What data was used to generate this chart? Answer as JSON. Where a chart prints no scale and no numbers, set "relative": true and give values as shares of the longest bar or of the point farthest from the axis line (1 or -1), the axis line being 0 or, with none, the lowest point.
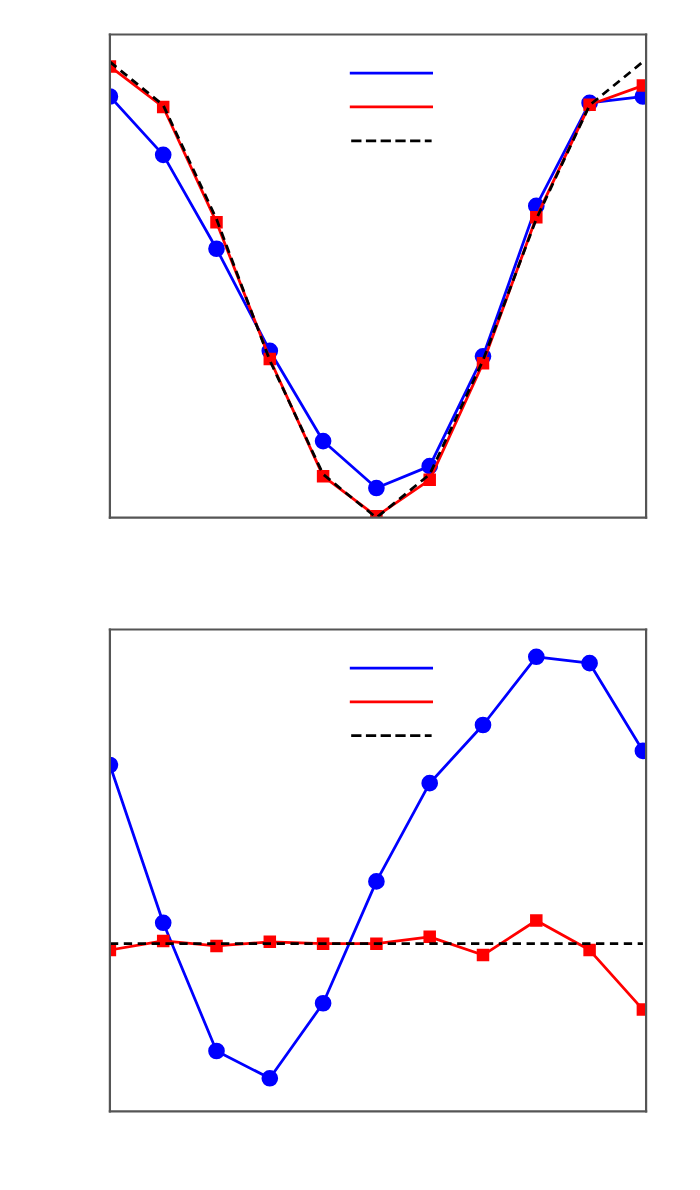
{
  "chart_data": [
    {
      "type": "line",
      "relative": true,
      "categories": [
        null,
        null,
        null,
        null,
        null,
        null,
        null,
        null,
        null,
        null,
        null
      ],
      "grid": false,
      "series": [
        {
          "color": "#0000ff",
          "marker": "circle",
          "line_style": "solid",
          "values": [
            0.924,
            0.796,
            0.59,
            0.366,
            0.168,
            0.065,
            0.113,
            0.354,
            0.684,
            0.91,
            0.924
          ]
        },
        {
          "color": "#ff0000",
          "marker": "square",
          "line_style": "solid",
          "values": [
            0.99,
            0.901,
            0.648,
            0.348,
            0.091,
            0.003,
            0.083,
            0.339,
            0.659,
            0.906,
            0.948
          ]
        },
        {
          "color": "#000000",
          "marker": "none",
          "line_style": "dashed",
          "values": [
            1,
            0.905,
            0.655,
            0.345,
            0.095,
            0,
            0.095,
            0.345,
            0.655,
            0.905,
            1
          ]
        }
      ]
    },
    {
      "type": "line",
      "relative": true,
      "categories": [
        null,
        null,
        null,
        null,
        null,
        null,
        null,
        null,
        null,
        null,
        null
      ],
      "grid": false,
      "series": [
        {
          "color": "#0000ff",
          "marker": "circle",
          "line_style": "solid",
          "values": [
            0.762,
            0.415,
            0.133,
            0.073,
            0.238,
            0.506,
            0.722,
            0.85,
            1.0,
            0.986,
            0.793
          ]
        },
        {
          "color": "#ff0000",
          "marker": "square",
          "line_style": "solid",
          "values": [
            0.355,
            0.375,
            0.364,
            0.373,
            0.369,
            0.369,
            0.384,
            0.344,
            0.42,
            0.355,
            0.224
          ]
        },
        {
          "color": "#000000",
          "marker": "none",
          "line_style": "dashed",
          "values": [
            0.369,
            0.369,
            0.369,
            0.369,
            0.369,
            0.369,
            0.369,
            0.369,
            0.369,
            0.369,
            0.369
          ]
        }
      ]
    }
  ]
}
